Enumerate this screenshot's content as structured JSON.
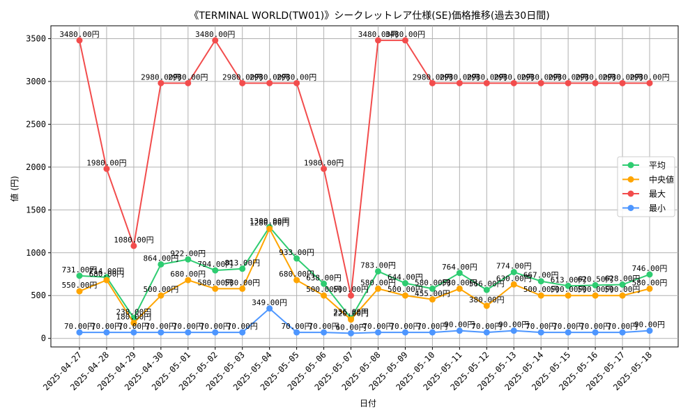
{
  "chart_data": {
    "type": "line",
    "title": "《TERMINAL WORLD(TW01)》シークレットレア仕様(SE)価格推移(過去30日間)",
    "xlabel": "日付",
    "ylabel": "値 (円)",
    "ylim": [
      -100,
      3650
    ],
    "yticks": [
      0,
      500,
      1000,
      1500,
      2000,
      2500,
      3000,
      3500
    ],
    "grid": true,
    "legend_position": "center-right",
    "value_suffix": "円",
    "categories": [
      "2025-04-27",
      "2025-04-28",
      "2025-04-29",
      "2025-04-30",
      "2025-05-01",
      "2025-05-02",
      "2025-05-03",
      "2025-05-04",
      "2025-05-05",
      "2025-05-06",
      "2025-05-07",
      "2025-05-08",
      "2025-05-09",
      "2025-05-10",
      "2025-05-11",
      "2025-05-12",
      "2025-05-13",
      "2025-05-14",
      "2025-05-15",
      "2025-05-16",
      "2025-05-17",
      "2025-05-18"
    ],
    "series": [
      {
        "name": "平均",
        "color": "#2ecc71",
        "values": [
          731,
          714,
          238,
          864,
          922,
          794,
          813,
          1300,
          933,
          638,
          236,
          783,
          644,
          580,
          764,
          566,
          774,
          667,
          613,
          620.5,
          628,
          746
        ]
      },
      {
        "name": "中央値",
        "color": "#ffa500",
        "values": [
          550,
          680,
          180,
          500,
          680,
          580,
          580,
          1280,
          680,
          500,
          220,
          580,
          500,
          455,
          580,
          380,
          630,
          500,
          500,
          500,
          500,
          580
        ]
      },
      {
        "name": "最大",
        "color": "#f24c4c",
        "values": [
          3480,
          1980,
          1080,
          2980,
          2980,
          3480,
          2980,
          2980,
          2980,
          1980,
          500,
          3480,
          3480,
          2980,
          2980,
          2980,
          2980,
          2980,
          2980,
          2980,
          2980,
          2980
        ]
      },
      {
        "name": "最小",
        "color": "#4d96ff",
        "values": [
          70,
          70,
          70,
          70,
          70,
          70,
          70,
          349,
          70,
          70,
          60,
          70,
          70,
          70,
          90,
          70,
          90,
          70,
          70,
          70,
          70,
          90
        ]
      }
    ]
  }
}
